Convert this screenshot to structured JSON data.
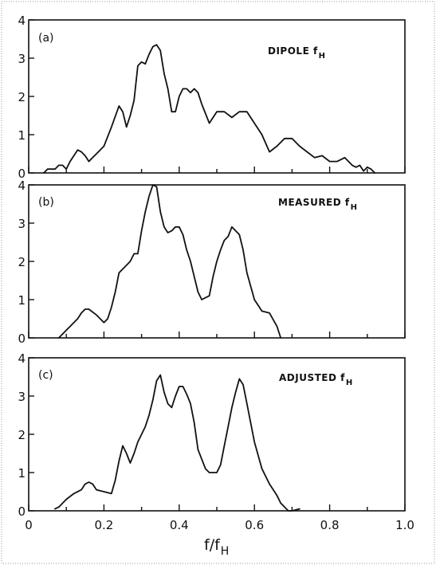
{
  "chart_data": [
    {
      "type": "line",
      "panel_label": "(a)",
      "annotation": "DIPOLE f",
      "annotation_sub": "H",
      "xlim": [
        0,
        1.0
      ],
      "ylim": [
        0,
        4
      ],
      "x": [
        0.04,
        0.05,
        0.06,
        0.07,
        0.08,
        0.09,
        0.1,
        0.11,
        0.13,
        0.14,
        0.15,
        0.16,
        0.17,
        0.18,
        0.19,
        0.2,
        0.22,
        0.24,
        0.25,
        0.26,
        0.27,
        0.28,
        0.29,
        0.3,
        0.31,
        0.32,
        0.33,
        0.34,
        0.35,
        0.36,
        0.37,
        0.38,
        0.39,
        0.4,
        0.41,
        0.42,
        0.43,
        0.44,
        0.45,
        0.46,
        0.48,
        0.5,
        0.52,
        0.54,
        0.56,
        0.58,
        0.6,
        0.62,
        0.64,
        0.66,
        0.68,
        0.7,
        0.72,
        0.74,
        0.76,
        0.78,
        0.8,
        0.82,
        0.84,
        0.86,
        0.87,
        0.88,
        0.89,
        0.9,
        0.91,
        0.92
      ],
      "values": [
        0.0,
        0.1,
        0.1,
        0.1,
        0.2,
        0.2,
        0.1,
        0.3,
        0.6,
        0.55,
        0.45,
        0.3,
        0.4,
        0.5,
        0.6,
        0.7,
        1.2,
        1.75,
        1.6,
        1.2,
        1.5,
        1.9,
        2.8,
        2.9,
        2.85,
        3.1,
        3.3,
        3.35,
        3.2,
        2.6,
        2.2,
        1.6,
        1.6,
        2.0,
        2.2,
        2.2,
        2.1,
        2.2,
        2.1,
        1.8,
        1.3,
        1.6,
        1.6,
        1.45,
        1.6,
        1.6,
        1.3,
        1.0,
        0.55,
        0.7,
        0.9,
        0.9,
        0.7,
        0.55,
        0.4,
        0.45,
        0.3,
        0.3,
        0.4,
        0.2,
        0.15,
        0.2,
        0.05,
        0.15,
        0.1,
        0.0
      ]
    },
    {
      "type": "line",
      "panel_label": "(b)",
      "annotation": "MEASURED f",
      "annotation_sub": "H",
      "xlim": [
        0,
        1.0
      ],
      "ylim": [
        0,
        4
      ],
      "x": [
        0.08,
        0.1,
        0.11,
        0.13,
        0.14,
        0.15,
        0.16,
        0.18,
        0.2,
        0.21,
        0.22,
        0.23,
        0.24,
        0.25,
        0.27,
        0.28,
        0.29,
        0.3,
        0.31,
        0.32,
        0.33,
        0.34,
        0.35,
        0.36,
        0.37,
        0.38,
        0.39,
        0.4,
        0.41,
        0.42,
        0.43,
        0.44,
        0.45,
        0.46,
        0.48,
        0.49,
        0.5,
        0.51,
        0.52,
        0.53,
        0.54,
        0.55,
        0.56,
        0.57,
        0.58,
        0.6,
        0.62,
        0.64,
        0.66,
        0.67
      ],
      "values": [
        0.0,
        0.2,
        0.3,
        0.5,
        0.65,
        0.75,
        0.75,
        0.6,
        0.4,
        0.5,
        0.8,
        1.2,
        1.7,
        1.8,
        2.0,
        2.2,
        2.2,
        2.8,
        3.3,
        3.7,
        4.0,
        3.95,
        3.3,
        2.9,
        2.75,
        2.8,
        2.9,
        2.9,
        2.7,
        2.3,
        2.0,
        1.6,
        1.2,
        1.0,
        1.1,
        1.6,
        2.0,
        2.3,
        2.55,
        2.65,
        2.9,
        2.8,
        2.7,
        2.3,
        1.7,
        1.0,
        0.7,
        0.65,
        0.3,
        0.0
      ]
    },
    {
      "type": "line",
      "panel_label": "(c)",
      "annotation": "ADJUSTED f",
      "annotation_sub": "H",
      "xlim": [
        0,
        1.0
      ],
      "ylim": [
        0,
        4
      ],
      "x": [
        0.07,
        0.08,
        0.1,
        0.12,
        0.14,
        0.15,
        0.16,
        0.17,
        0.18,
        0.2,
        0.22,
        0.23,
        0.24,
        0.25,
        0.26,
        0.27,
        0.28,
        0.29,
        0.3,
        0.31,
        0.32,
        0.33,
        0.34,
        0.35,
        0.36,
        0.37,
        0.38,
        0.39,
        0.4,
        0.41,
        0.42,
        0.43,
        0.44,
        0.45,
        0.47,
        0.48,
        0.5,
        0.51,
        0.52,
        0.53,
        0.54,
        0.55,
        0.56,
        0.57,
        0.58,
        0.6,
        0.62,
        0.64,
        0.66,
        0.67,
        0.68,
        0.69,
        0.7,
        0.72
      ],
      "values": [
        0.05,
        0.1,
        0.3,
        0.45,
        0.55,
        0.7,
        0.75,
        0.7,
        0.55,
        0.5,
        0.45,
        0.8,
        1.3,
        1.7,
        1.5,
        1.25,
        1.5,
        1.8,
        2.0,
        2.2,
        2.5,
        2.9,
        3.4,
        3.55,
        3.1,
        2.8,
        2.7,
        3.0,
        3.25,
        3.25,
        3.05,
        2.8,
        2.3,
        1.6,
        1.1,
        1.0,
        1.0,
        1.2,
        1.7,
        2.2,
        2.7,
        3.1,
        3.45,
        3.3,
        2.8,
        1.8,
        1.1,
        0.7,
        0.4,
        0.2,
        0.1,
        0.0,
        0.0,
        0.05
      ]
    }
  ],
  "axes": {
    "x_ticks": [
      "0",
      "0.2",
      "0.4",
      "0.6",
      "0.8",
      "1.0"
    ],
    "y_ticks": [
      "0",
      "1",
      "2",
      "3",
      "4"
    ],
    "xlabel": "f/f",
    "xlabel_sub": "H"
  }
}
